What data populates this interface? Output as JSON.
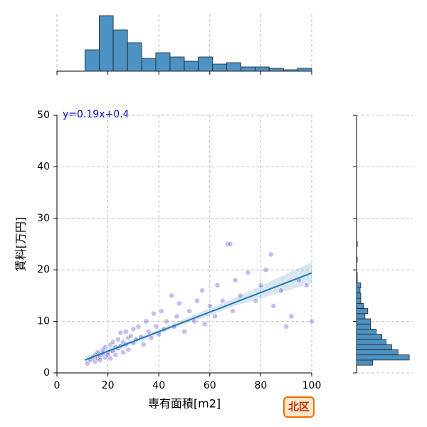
{
  "chart_data": {
    "type": "scatter",
    "xlabel": "専有面積[m2]",
    "ylabel": "賃料[万円]",
    "annotation": "y=0.19x+0.4",
    "badge": "北区",
    "xlim": [
      0,
      100
    ],
    "xticks": [
      0,
      20,
      40,
      60,
      80,
      100
    ],
    "ylim": [
      0,
      50
    ],
    "yticks": [
      0,
      10,
      20,
      30,
      40,
      50
    ],
    "grid": true,
    "point_color": "#3a2bc0",
    "x": [
      12,
      13,
      14,
      15,
      15,
      16,
      16,
      17,
      17,
      18,
      18,
      19,
      19,
      20,
      20,
      21,
      21,
      22,
      22,
      23,
      23,
      24,
      24,
      25,
      25,
      26,
      26,
      27,
      27,
      28,
      28,
      29,
      30,
      30,
      31,
      32,
      33,
      34,
      35,
      36,
      37,
      38,
      39,
      40,
      41,
      42,
      43,
      45,
      46,
      47,
      48,
      50,
      52,
      54,
      55,
      57,
      58,
      60,
      62,
      63,
      65,
      67,
      68,
      69,
      70,
      72,
      75,
      78,
      80,
      82,
      84,
      85,
      88,
      90,
      92,
      95,
      98,
      100
    ],
    "y": [
      1.8,
      2.5,
      3,
      2.2,
      3.5,
      2.8,
      4,
      3.2,
      2.5,
      3.8,
      4.5,
      3,
      5,
      4,
      3.5,
      5.5,
      2.8,
      4.2,
      6,
      5,
      3.5,
      6.5,
      4.8,
      5.2,
      7.8,
      4,
      6,
      8,
      5.5,
      6.8,
      4.5,
      7.2,
      5.8,
      8.5,
      6.5,
      9,
      7,
      5.5,
      10,
      8,
      6.8,
      11.5,
      9,
      7.5,
      12,
      8.5,
      10,
      15,
      9,
      11,
      13.5,
      8,
      12,
      10,
      14,
      16,
      9.5,
      13,
      11,
      17,
      14,
      25,
      25,
      12,
      18,
      15,
      19.5,
      14,
      17,
      20,
      23,
      13,
      16,
      9,
      11,
      18,
      17,
      10
    ],
    "regression": {
      "color": "#1f77b4",
      "x": [
        11,
        100
      ],
      "y": [
        2.5,
        19.4
      ]
    },
    "band": {
      "x": [
        11,
        40,
        70,
        100
      ],
      "lower": [
        1.8,
        7.6,
        13,
        17.4
      ],
      "upper": [
        3.2,
        8.4,
        14.6,
        21.5
      ]
    },
    "marginal_x": {
      "type": "histogram",
      "color": "#4c92c3",
      "bins": [
        11,
        16.6,
        22.1,
        27.7,
        33.3,
        38.8,
        44.4,
        50,
        55.5,
        61.1,
        66.6,
        72.2,
        77.8,
        83.3,
        88.9,
        94.4,
        100
      ],
      "counts": [
        15,
        39,
        29,
        20,
        9,
        13,
        10,
        7,
        10,
        5,
        6,
        3,
        3,
        2,
        1,
        2
      ],
      "ylim": [
        0,
        40
      ]
    },
    "marginal_y": {
      "type": "histogram",
      "color": "#4c92c3",
      "bins": [
        1.5,
        2.5,
        3.5,
        4.5,
        5.5,
        6.5,
        7.5,
        8.5,
        9.5,
        10.5,
        11.5,
        12.5,
        13.5,
        14.5,
        15.5,
        16.5,
        17.5,
        18.5,
        19.5,
        20.5,
        21.5,
        22.5,
        23.5,
        24.5,
        25.5
      ],
      "counts": [
        23,
        75,
        59,
        50,
        42,
        36,
        28,
        20,
        20,
        12,
        16,
        10,
        6,
        6,
        5,
        6,
        1,
        1,
        0,
        0,
        1,
        0,
        0,
        1
      ],
      "xlim": [
        0,
        80
      ]
    }
  }
}
